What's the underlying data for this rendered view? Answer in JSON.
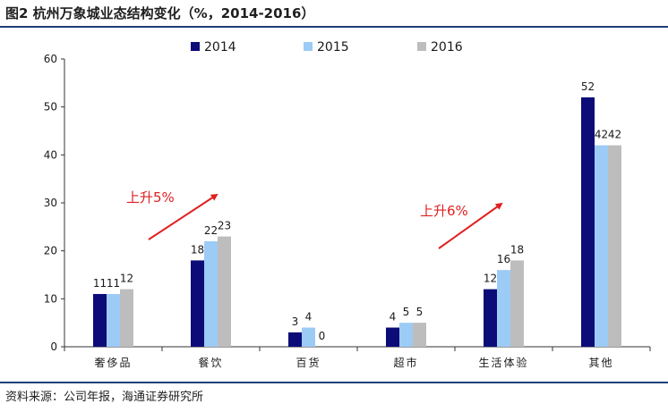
{
  "title": "图2  杭州万象城业态结构变化（%，2014-2016）",
  "source": "资料来源：公司年报，海通证券研究所",
  "colors": {
    "s2014": "#0c0c78",
    "s2015": "#9ccbf5",
    "s2016": "#bdbdbd",
    "annotation": "#e02020",
    "rule": "#1f3f7a"
  },
  "chart_data": {
    "type": "bar",
    "title": "杭州万象城业态结构变化（%，2014-2016）",
    "xlabel": "",
    "ylabel": "",
    "ylim": [
      0,
      60
    ],
    "yticks": [
      0,
      10,
      20,
      30,
      40,
      50,
      60
    ],
    "grid": false,
    "legend_position": "top",
    "categories": [
      "奢侈品",
      "餐饮",
      "百货",
      "超市",
      "生活体验",
      "其他"
    ],
    "series": [
      {
        "name": "2014",
        "values": [
          11,
          18,
          3,
          4,
          12,
          52
        ]
      },
      {
        "name": "2015",
        "values": [
          11,
          22,
          4,
          5,
          16,
          42
        ]
      },
      {
        "name": "2016",
        "values": [
          12,
          23,
          0,
          5,
          18,
          42
        ]
      }
    ],
    "annotations": [
      {
        "text": "上升5%"
      },
      {
        "text": "上升6%"
      }
    ]
  }
}
